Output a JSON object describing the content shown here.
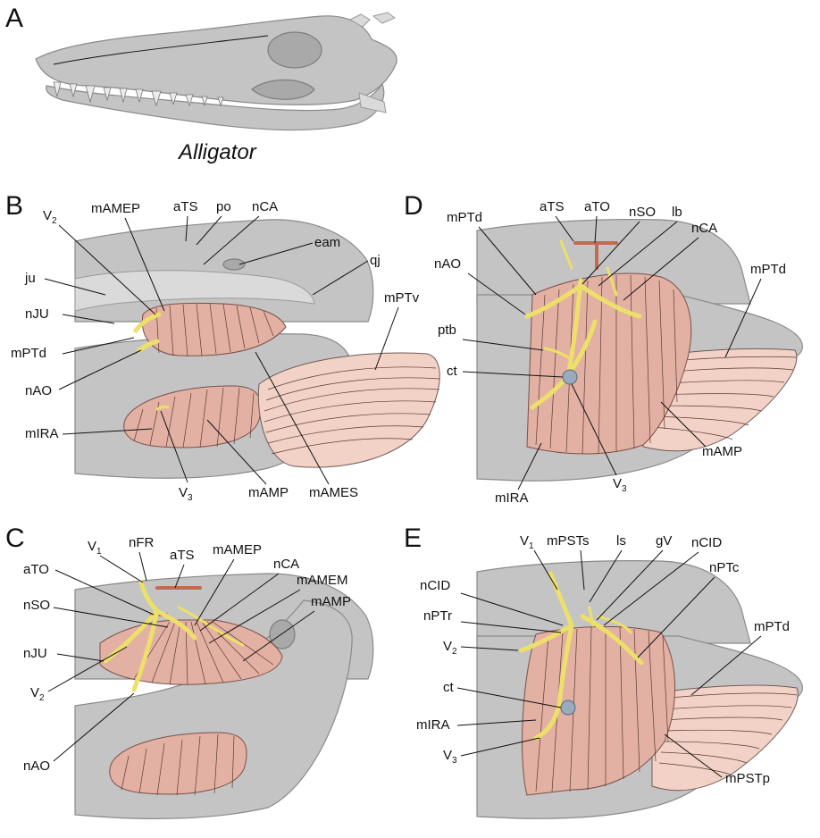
{
  "panels": {
    "A": {
      "letter": "A",
      "caption": "Alligator"
    },
    "B": {
      "letter": "B",
      "labels": {
        "v2": "V",
        "v2_sub": "2",
        "mamep": "mAMEP",
        "ats": "aTS",
        "po": "po",
        "nca": "nCA",
        "eam": "eam",
        "qj": "qj",
        "ju": "ju",
        "mptv": "mPTv",
        "nju": "nJU",
        "mptd": "mPTd",
        "nao": "nAO",
        "mira": "mIRA",
        "v3": "V",
        "v3_sub": "3",
        "mamp": "mAMP",
        "mames": "mAMES"
      }
    },
    "C": {
      "letter": "C",
      "labels": {
        "v1": "V",
        "v1_sub": "1",
        "nfr": "nFR",
        "ats": "aTS",
        "mamep": "mAMEP",
        "ato": "aTO",
        "nca": "nCA",
        "mamem": "mAMEM",
        "nso": "nSO",
        "mamp": "mAMP",
        "nju": "nJU",
        "v2": "V",
        "v2_sub": "2",
        "nao": "nAO"
      }
    },
    "D": {
      "letter": "D",
      "labels": {
        "mptd": "mPTd",
        "ats": "aTS",
        "ato": "aTO",
        "nso": "nSO",
        "lb": "lb",
        "nca": "nCA",
        "nao": "nAO",
        "mptd2": "mPTd",
        "ptb": "ptb",
        "ct": "ct",
        "mamp": "mAMP",
        "v3": "V",
        "v3_sub": "3",
        "mira": "mIRA"
      }
    },
    "E": {
      "letter": "E",
      "labels": {
        "v1": "V",
        "v1_sub": "1",
        "mpsts": "mPSTs",
        "ls": "ls",
        "gv": "gV",
        "ncid": "nCID",
        "ncid2": "nCID",
        "nptc": "nPTc",
        "nptr": "nPTr",
        "mptd": "mPTd",
        "v2": "V",
        "v2_sub": "2",
        "ct": "ct",
        "mira": "mIRA",
        "v3": "V",
        "v3_sub": "3",
        "mpstp": "mPSTp"
      }
    }
  },
  "colors": {
    "bone": "#c4c4c4",
    "muscle": "#e2b1a3",
    "muscle_light": "#f2d2c6",
    "nerve": "#ece06a",
    "artery": "#c46a52",
    "ganglion": "#9aabbd"
  }
}
